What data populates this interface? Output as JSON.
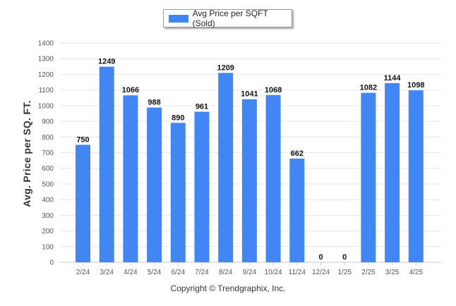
{
  "legend": {
    "label": "Avg Price per SQFT (Sold)",
    "color": "#4286f4"
  },
  "chart_data": {
    "type": "bar",
    "title": "",
    "xlabel": "",
    "ylabel": "Avg. Price per SQ. FT.",
    "categories": [
      "2/24",
      "3/24",
      "4/24",
      "5/24",
      "6/24",
      "7/24",
      "8/24",
      "9/24",
      "10/24",
      "11/24",
      "12/24",
      "1/25",
      "2/25",
      "3/25",
      "4/25"
    ],
    "series": [
      {
        "name": "Avg Price per SQFT (Sold)",
        "values": [
          750,
          1249,
          1066,
          988,
          890,
          961,
          1209,
          1041,
          1068,
          662,
          0,
          0,
          1082,
          1144,
          1098
        ]
      }
    ],
    "ylim": [
      0,
      1400
    ],
    "yticks": [
      0,
      100,
      200,
      300,
      400,
      500,
      600,
      700,
      800,
      900,
      1000,
      1100,
      1200,
      1300,
      1400
    ],
    "grid": true,
    "legend_position": "top-center",
    "bar_color": "#4286f4"
  },
  "footer": {
    "copyright": "Copyright © Trendgraphix, Inc."
  }
}
